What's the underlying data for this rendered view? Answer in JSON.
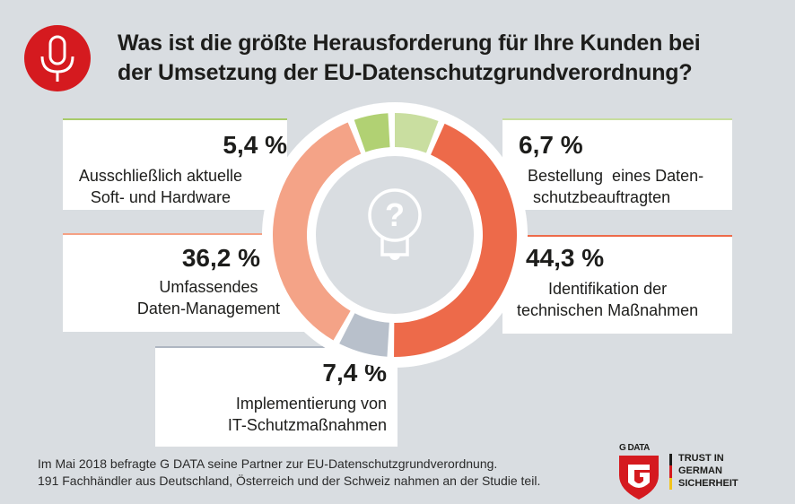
{
  "header": {
    "icon": "microphone-icon",
    "title_lines": [
      "Was ist die größte Herausforderung für Ihre Kunden bei",
      "der Umsetzung der EU-Datenschutzgrundverordnung?"
    ]
  },
  "chart_data": {
    "type": "pie",
    "variant": "donut",
    "title": "Was ist die größte Herausforderung für Ihre Kunden bei der Umsetzung der EU-Datenschutzgrundverordnung?",
    "unit": "%",
    "center_icon": "lightbulb-question-icon",
    "slices": [
      {
        "key": "soft_hardware",
        "value": 5.4,
        "value_label": "5,4 %",
        "label_lines": [
          "Ausschließlich aktuelle",
          "Soft- und Hardware"
        ],
        "color": "#b1d173"
      },
      {
        "key": "datenschutzbeauftragter",
        "value": 6.7,
        "value_label": "6,7 %",
        "label_lines": [
          "Bestellung  eines Daten-",
          "schutzbeauftragten"
        ],
        "color": "#c9dea0"
      },
      {
        "key": "technische_massnahmen",
        "value": 44.3,
        "value_label": "44,3 %",
        "label_lines": [
          "Identifikation der",
          "technischen Maßnahmen"
        ],
        "color": "#ed6a4a"
      },
      {
        "key": "it_schutz",
        "value": 7.4,
        "value_label": "7,4 %",
        "label_lines": [
          "Implementierung von",
          "IT-Schutzmaßnahmen"
        ],
        "color": "#b8c0cb"
      },
      {
        "key": "daten_management",
        "value": 36.2,
        "value_label": "36,2 %",
        "label_lines": [
          "Umfassendes",
          "Daten-Management"
        ],
        "color": "#f4a387"
      }
    ],
    "legend": "callout-cards"
  },
  "footnote": {
    "lines": [
      "Im Mai 2018 befragte G DATA seine Partner zur EU-Datenschutzgrundverordnung.",
      "191 Fachhändler aus Deutschland, Österreich und der Schweiz nahmen an der Studie teil."
    ]
  },
  "logo": {
    "brand": "G DATA",
    "icon": "gdata-shield-icon",
    "slogan_lines": [
      "TRUST IN",
      "GERMAN",
      "SICHERHEIT"
    ],
    "flag_colors": [
      "#1d1d1b",
      "#d51a1f",
      "#f2c31b"
    ]
  },
  "colors": {
    "background": "#d9dde1",
    "accent_red": "#d51a1f",
    "card": "#ffffff",
    "center_disc": "#d9dde1"
  }
}
